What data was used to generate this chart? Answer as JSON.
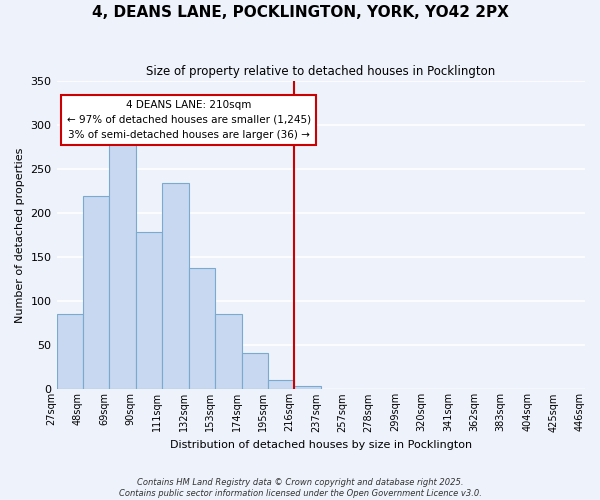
{
  "title": "4, DEANS LANE, POCKLINGTON, YORK, YO42 2PX",
  "subtitle": "Size of property relative to detached houses in Pocklington",
  "xlabel": "Distribution of detached houses by size in Pocklington",
  "ylabel": "Number of detached properties",
  "bin_labels": [
    "27sqm",
    "48sqm",
    "69sqm",
    "90sqm",
    "111sqm",
    "132sqm",
    "153sqm",
    "174sqm",
    "195sqm",
    "216sqm",
    "237sqm",
    "257sqm",
    "278sqm",
    "299sqm",
    "320sqm",
    "341sqm",
    "362sqm",
    "383sqm",
    "404sqm",
    "425sqm",
    "446sqm"
  ],
  "bar_heights": [
    85,
    219,
    284,
    178,
    234,
    138,
    85,
    41,
    11,
    4,
    1,
    0,
    0,
    0,
    0,
    0,
    0,
    0,
    0,
    0
  ],
  "bar_color": "#c8d8f0",
  "bar_edge_color": "#7aaad0",
  "property_line_x": 9.0,
  "property_line_color": "#cc0000",
  "annotation_text": "4 DEANS LANE: 210sqm\n← 97% of detached houses are smaller (1,245)\n3% of semi-detached houses are larger (36) →",
  "annotation_box_color": "#ffffff",
  "annotation_box_edge": "#cc0000",
  "ylim": [
    0,
    350
  ],
  "yticks": [
    0,
    50,
    100,
    150,
    200,
    250,
    300,
    350
  ],
  "footnote1": "Contains HM Land Registry data © Crown copyright and database right 2025.",
  "footnote2": "Contains public sector information licensed under the Open Government Licence v3.0.",
  "background_color": "#eef2fb",
  "grid_color": "#ffffff"
}
